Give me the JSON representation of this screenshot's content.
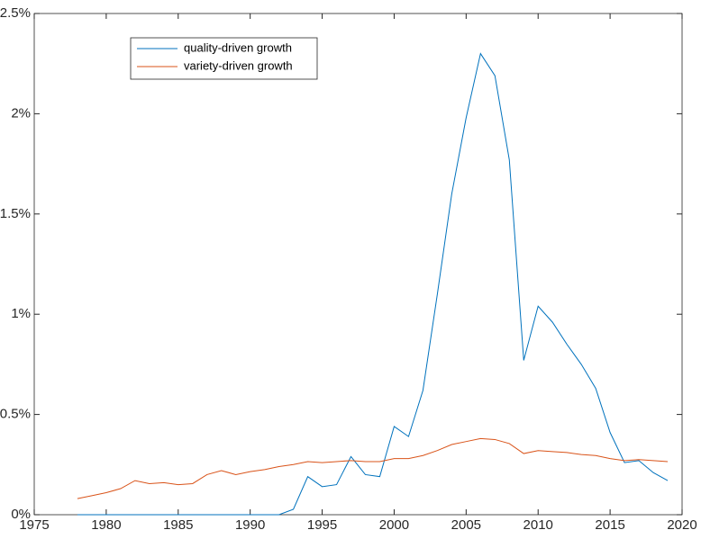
{
  "chart_data": {
    "type": "line",
    "x": [
      1978,
      1979,
      1980,
      1981,
      1982,
      1983,
      1984,
      1985,
      1986,
      1987,
      1988,
      1989,
      1990,
      1991,
      1992,
      1993,
      1994,
      1995,
      1996,
      1997,
      1998,
      1999,
      2000,
      2001,
      2002,
      2003,
      2004,
      2005,
      2006,
      2007,
      2008,
      2009,
      2010,
      2011,
      2012,
      2013,
      2014,
      2015,
      2016,
      2017,
      2018,
      2019
    ],
    "series": [
      {
        "name": "quality-driven growth",
        "color": "#0072bd",
        "values": [
          0,
          0,
          0,
          0,
          0,
          0,
          0,
          0,
          0,
          0,
          0,
          0,
          0,
          0,
          0,
          0.027,
          0.19,
          0.14,
          0.15,
          0.29,
          0.2,
          0.19,
          0.44,
          0.39,
          0.62,
          1.1,
          1.6,
          1.98,
          2.3,
          2.19,
          1.77,
          0.77,
          1.04,
          0.96,
          0.85,
          0.75,
          0.63,
          0.41,
          0.26,
          0.27,
          0.21,
          0.17
        ]
      },
      {
        "name": "variety-driven growth",
        "color": "#d95319",
        "values": [
          0.08,
          0.095,
          0.11,
          0.13,
          0.17,
          0.155,
          0.16,
          0.15,
          0.155,
          0.2,
          0.22,
          0.2,
          0.215,
          0.225,
          0.24,
          0.25,
          0.265,
          0.26,
          0.265,
          0.27,
          0.265,
          0.265,
          0.28,
          0.28,
          0.295,
          0.32,
          0.35,
          0.365,
          0.38,
          0.375,
          0.355,
          0.305,
          0.32,
          0.315,
          0.31,
          0.3,
          0.295,
          0.28,
          0.27,
          0.275,
          0.27,
          0.265
        ]
      }
    ],
    "xlim": [
      1975,
      2020
    ],
    "xticks": [
      1975,
      1980,
      1985,
      1990,
      1995,
      2000,
      2005,
      2010,
      2015,
      2020
    ],
    "ylim": [
      0,
      2.5
    ],
    "yticks": [
      {
        "value": 0,
        "label": "0%"
      },
      {
        "value": 0.5,
        "label": "0.5%"
      },
      {
        "value": 1,
        "label": "1%"
      },
      {
        "value": 1.5,
        "label": "1.5%"
      },
      {
        "value": 2,
        "label": "2%"
      },
      {
        "value": 2.5,
        "label": "2.5%"
      }
    ],
    "grid": false,
    "legend": "upper left"
  }
}
